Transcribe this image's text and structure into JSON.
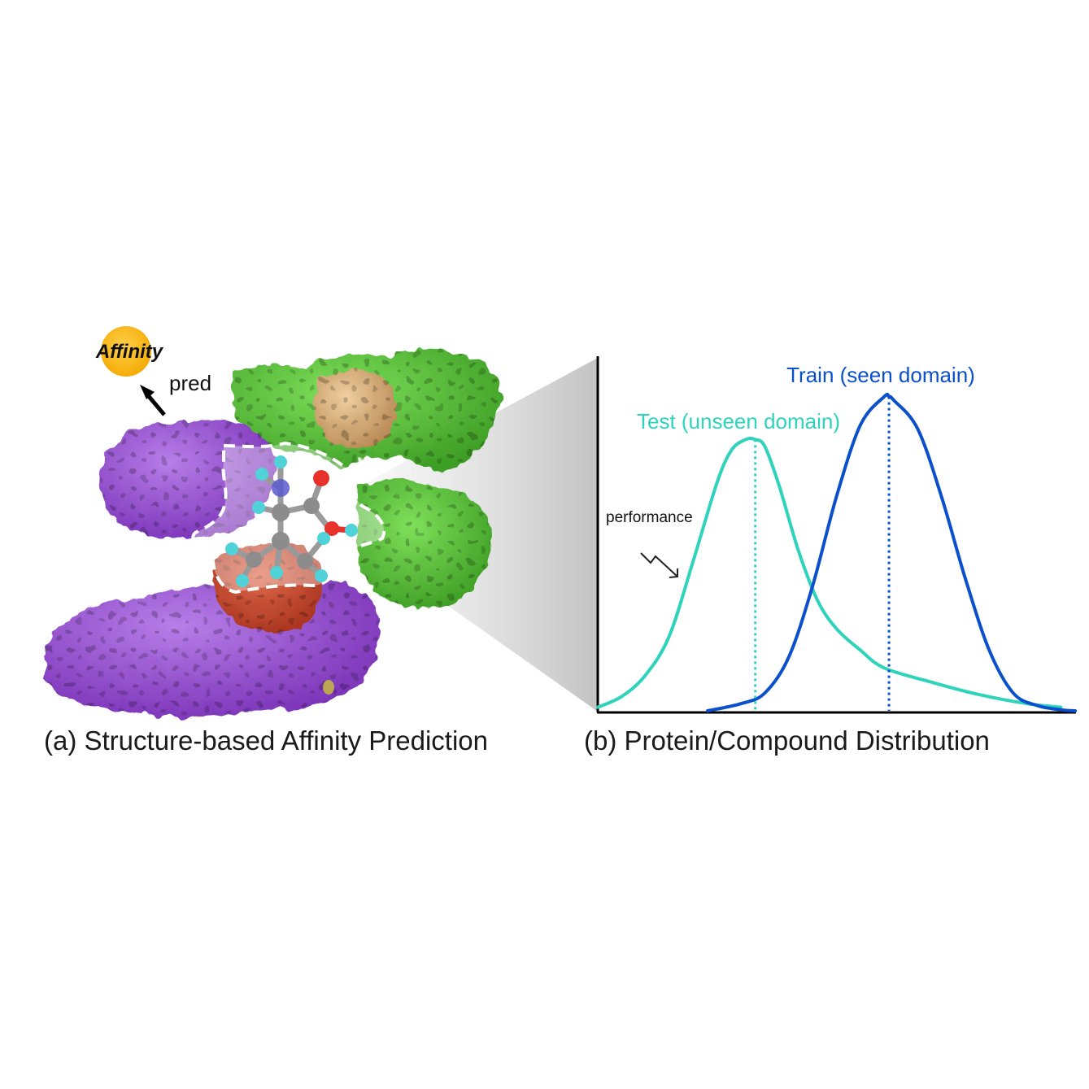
{
  "panel_a": {
    "caption": "(a) Structure-based Affinity Prediction",
    "affinity_label": "Affinity",
    "pred_label": "pred",
    "colors": {
      "affinity_badge": "#FBB80B",
      "protein_purple": "#9B53D6",
      "protein_green": "#5BC93A",
      "protein_tan": "#D9B07A",
      "protein_red": "#C4462C",
      "atom_carbon": "#8C8C8C",
      "atom_hydrogen": "#4FD3D8",
      "atom_oxygen": "#E8312A",
      "atom_nitrogen": "#5A5AD0"
    }
  },
  "panel_b": {
    "caption": "(b) Protein/Compound Distribution",
    "performance_label": "performance",
    "chart_data": {
      "type": "line",
      "title": "",
      "xlabel": "",
      "ylabel": "",
      "axes_ticks": false,
      "grid": false,
      "series": [
        {
          "name": "Test (unseen domain)",
          "color": "#2ED3BC",
          "shape": "skewed peak, long right tail",
          "peak_x": 0.33,
          "peak_height": 0.76,
          "x": [
            0.0,
            0.05,
            0.1,
            0.15,
            0.2,
            0.25,
            0.28,
            0.31,
            0.33,
            0.35,
            0.38,
            0.42,
            0.46,
            0.5,
            0.55,
            0.6,
            0.7,
            0.8,
            0.9,
            0.97
          ],
          "y": [
            0.01,
            0.04,
            0.1,
            0.21,
            0.42,
            0.64,
            0.73,
            0.76,
            0.76,
            0.74,
            0.63,
            0.45,
            0.31,
            0.23,
            0.17,
            0.12,
            0.08,
            0.045,
            0.02,
            0.01
          ]
        },
        {
          "name": "Train (seen domain)",
          "color": "#0A4FCC",
          "shape": "symmetric bell",
          "peak_x": 0.61,
          "peak_height": 0.88,
          "x": [
            0.23,
            0.3,
            0.35,
            0.4,
            0.45,
            0.5,
            0.55,
            0.6,
            0.61,
            0.62,
            0.67,
            0.72,
            0.77,
            0.82,
            0.87,
            0.92,
            0.97,
            1.0
          ],
          "y": [
            0.0,
            0.02,
            0.05,
            0.15,
            0.35,
            0.6,
            0.8,
            0.88,
            0.88,
            0.87,
            0.79,
            0.6,
            0.37,
            0.17,
            0.05,
            0.015,
            0.003,
            0.0
          ]
        }
      ],
      "reference_lines": [
        {
          "series": "Test (unseen domain)",
          "x": 0.33,
          "style": "dotted"
        },
        {
          "series": "Train (seen domain)",
          "x": 0.61,
          "style": "dotted"
        }
      ],
      "xlim": [
        0,
        1
      ],
      "ylim": [
        0,
        1
      ]
    }
  }
}
